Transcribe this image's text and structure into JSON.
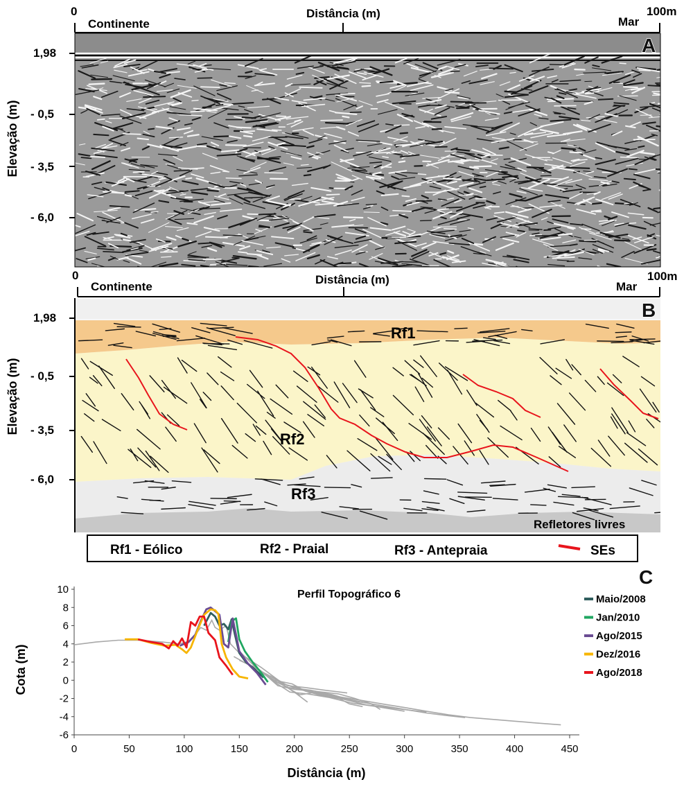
{
  "panel_a": {
    "letter": "A",
    "axis_start": "0",
    "axis_end": "100m",
    "axis_title": "Distância (m)",
    "left_label": "Continente",
    "right_label": "Mar",
    "y_title": "Elevação (m)",
    "y_ticks": [
      "1,98",
      "- 0,5",
      "- 3,5",
      "- 6,0"
    ]
  },
  "panel_b": {
    "letter": "B",
    "axis_start": "0",
    "axis_end": "100m",
    "axis_title": "Distância (m)",
    "left_label": "Continente",
    "right_label": "Mar",
    "y_title": "Elevação (m)",
    "y_ticks": [
      "1,98",
      "- 0,5",
      "- 3,5",
      "- 6,0"
    ],
    "unit_labels": [
      "Rf1",
      "Rf2",
      "Rf3"
    ],
    "bottom_label": "Refletores livres",
    "colors": {
      "rf1": "#f5c98c",
      "rf2": "#fbf5c9",
      "rf3": "#ececec",
      "free": "#c8c8c8",
      "ses": "#e8141c"
    }
  },
  "legend": {
    "items": [
      "Rf1 - Eólico",
      "Rf2 - Praial",
      "Rf3 - Antepraia",
      "SEs"
    ]
  },
  "panel_c": {
    "letter": "C",
    "chart_data": {
      "type": "line",
      "title": "Perfil Topográfico 6",
      "xlabel": "Distância (m)",
      "ylabel": "Cota (m)",
      "xlim": [
        0,
        450
      ],
      "ylim": [
        -6,
        10
      ],
      "xticks": [
        "0",
        "50",
        "100",
        "150",
        "200",
        "250",
        "300",
        "350",
        "400",
        "450"
      ],
      "yticks": [
        "10",
        "8",
        "6",
        "4",
        "2",
        "0",
        "-2",
        "-4",
        "-6"
      ],
      "legend_position": "right",
      "series": [
        {
          "name": "Maio/2008",
          "color": "#2f5e5e",
          "points": [
            [
              118,
              6.0
            ],
            [
              124,
              7.4
            ],
            [
              128,
              7.0
            ],
            [
              132,
              6.0
            ],
            [
              136,
              6.2
            ],
            [
              140,
              5.6
            ],
            [
              143,
              6.7
            ],
            [
              146,
              5.0
            ],
            [
              150,
              3.0
            ],
            [
              156,
              2.0
            ],
            [
              164,
              1.2
            ],
            [
              172,
              0.3
            ]
          ]
        },
        {
          "name": "Jan/2010",
          "color": "#1fa660",
          "points": [
            [
              140,
              4.2
            ],
            [
              143,
              6.5
            ],
            [
              147,
              6.8
            ],
            [
              150,
              4.5
            ],
            [
              155,
              3.2
            ],
            [
              162,
              2.0
            ],
            [
              170,
              0.8
            ],
            [
              176,
              -0.2
            ]
          ]
        },
        {
          "name": "Ago/2015",
          "color": "#6a4c93",
          "points": [
            [
              96,
              3.8
            ],
            [
              104,
              4.2
            ],
            [
              110,
              5.0
            ],
            [
              115,
              6.5
            ],
            [
              120,
              7.8
            ],
            [
              124,
              8.0
            ],
            [
              128,
              7.6
            ],
            [
              132,
              7.2
            ],
            [
              136,
              4.0
            ],
            [
              140,
              3.6
            ],
            [
              144,
              6.8
            ],
            [
              147,
              5.0
            ],
            [
              150,
              3.2
            ],
            [
              158,
              1.8
            ],
            [
              166,
              0.8
            ],
            [
              174,
              -0.5
            ]
          ]
        },
        {
          "name": "Dez/2016",
          "color": "#f7b500",
          "points": [
            [
              46,
              4.5
            ],
            [
              58,
              4.5
            ],
            [
              70,
              4.1
            ],
            [
              82,
              3.8
            ],
            [
              92,
              3.9
            ],
            [
              98,
              3.4
            ],
            [
              102,
              3.0
            ],
            [
              106,
              3.6
            ],
            [
              112,
              5.5
            ],
            [
              118,
              7.2
            ],
            [
              124,
              7.8
            ],
            [
              128,
              7.7
            ],
            [
              131,
              7.3
            ],
            [
              134,
              4.0
            ],
            [
              138,
              2.5
            ],
            [
              144,
              1.2
            ],
            [
              150,
              0.4
            ],
            [
              158,
              0.2
            ]
          ]
        },
        {
          "name": "Ago/2018",
          "color": "#e8141c",
          "points": [
            [
              58,
              4.5
            ],
            [
              70,
              4.2
            ],
            [
              80,
              4.0
            ],
            [
              86,
              3.5
            ],
            [
              90,
              4.3
            ],
            [
              94,
              3.8
            ],
            [
              98,
              4.6
            ],
            [
              102,
              3.6
            ],
            [
              106,
              6.4
            ],
            [
              110,
              6.0
            ],
            [
              114,
              7.0
            ],
            [
              118,
              7.0
            ],
            [
              122,
              5.2
            ],
            [
              128,
              4.4
            ],
            [
              132,
              2.5
            ],
            [
              138,
              1.6
            ],
            [
              144,
              0.6
            ]
          ]
        }
      ],
      "background_series": [
        [
          [
            0,
            3.9
          ],
          [
            20,
            4.2
          ],
          [
            40,
            4.4
          ],
          [
            60,
            4.4
          ],
          [
            80,
            4.2
          ],
          [
            95,
            4.0
          ],
          [
            105,
            4.3
          ],
          [
            110,
            5.0
          ],
          [
            115,
            5.8
          ],
          [
            120,
            5.5
          ],
          [
            125,
            6.6
          ],
          [
            128,
            5.8
          ],
          [
            132,
            5.5
          ],
          [
            138,
            6.0
          ],
          [
            142,
            4.0
          ],
          [
            150,
            3.0
          ],
          [
            160,
            2.2
          ],
          [
            170,
            1.4
          ],
          [
            180,
            0.5
          ],
          [
            190,
            -0.4
          ],
          [
            205,
            -0.9
          ],
          [
            220,
            -1.4
          ],
          [
            240,
            -1.8
          ],
          [
            260,
            -2.2
          ],
          [
            280,
            -2.6
          ],
          [
            300,
            -3.0
          ],
          [
            320,
            -3.4
          ],
          [
            340,
            -3.8
          ],
          [
            360,
            -4.1
          ],
          [
            380,
            -4.3
          ],
          [
            400,
            -4.5
          ],
          [
            420,
            -4.7
          ],
          [
            442,
            -4.9
          ]
        ],
        [
          [
            150,
            3.2
          ],
          [
            165,
            1.4
          ],
          [
            180,
            0.0
          ],
          [
            195,
            -0.8
          ],
          [
            215,
            -1.1
          ],
          [
            235,
            -1.6
          ],
          [
            255,
            -2.3
          ],
          [
            275,
            -2.7
          ],
          [
            295,
            -3.1
          ],
          [
            320,
            -3.6
          ],
          [
            340,
            -3.9
          ],
          [
            355,
            -4.1
          ]
        ],
        [
          [
            145,
            2.6
          ],
          [
            160,
            1.6
          ],
          [
            176,
            0.6
          ],
          [
            190,
            -0.4
          ],
          [
            205,
            -1.0
          ],
          [
            225,
            -1.7
          ],
          [
            245,
            -2.1
          ],
          [
            265,
            -2.7
          ],
          [
            285,
            -3.0
          ],
          [
            305,
            -3.3
          ],
          [
            320,
            -3.5
          ]
        ],
        [
          [
            150,
            2.2
          ],
          [
            168,
            1.2
          ],
          [
            182,
            -0.2
          ],
          [
            196,
            -1.3
          ],
          [
            212,
            -1.5
          ],
          [
            232,
            -1.9
          ],
          [
            252,
            -2.5
          ],
          [
            275,
            -2.9
          ],
          [
            300,
            -3.4
          ]
        ],
        [
          [
            170,
            1.0
          ],
          [
            185,
            -0.6
          ],
          [
            200,
            -1.0
          ],
          [
            218,
            -1.2
          ],
          [
            240,
            -1.5
          ],
          [
            255,
            -2.0
          ],
          [
            270,
            -2.6
          ],
          [
            278,
            -3.2
          ]
        ],
        [
          [
            162,
            1.6
          ],
          [
            178,
            0.2
          ],
          [
            192,
            -0.7
          ],
          [
            205,
            -1.6
          ],
          [
            220,
            -1.3
          ],
          [
            236,
            -1.7
          ],
          [
            250,
            -2.6
          ],
          [
            262,
            -2.9
          ]
        ],
        [
          [
            178,
            0.5
          ],
          [
            190,
            -0.5
          ],
          [
            202,
            -1.5
          ],
          [
            212,
            -2.4
          ]
        ],
        [
          [
            180,
            0.4
          ],
          [
            194,
            -0.6
          ],
          [
            210,
            -0.8
          ],
          [
            228,
            -1.1
          ],
          [
            248,
            -1.4
          ]
        ],
        [
          [
            168,
            1.1
          ],
          [
            182,
            0.0
          ],
          [
            198,
            -0.4
          ],
          [
            210,
            -1.2
          ],
          [
            225,
            -1.6
          ],
          [
            245,
            -2.0
          ],
          [
            262,
            -2.4
          ]
        ]
      ]
    }
  }
}
